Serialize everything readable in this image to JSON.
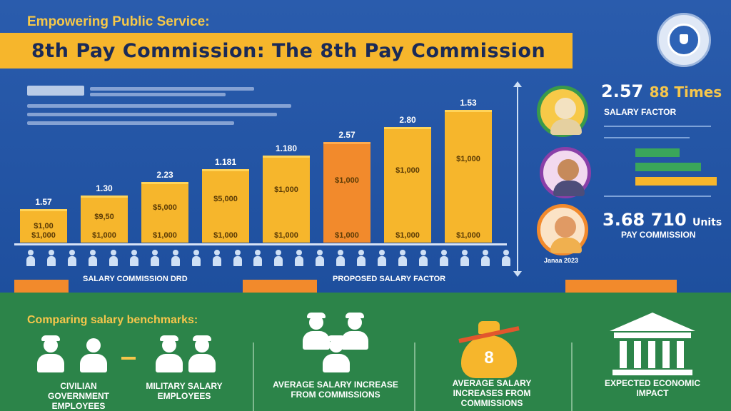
{
  "header": {
    "kicker": "Empowering Public Service:",
    "title": "8th Pay Commission: The 8th Pay Commission"
  },
  "icons": {
    "emblem": "shield-emblem-icon",
    "people": "person-icon",
    "bag": "money-bag-icon",
    "bank": "government-building-icon"
  },
  "colors": {
    "background_blue": "#1f4f9c",
    "bar_yellow": "#f6b62c",
    "bar_orange": "#f28a2c",
    "bottom_green": "#2c8449",
    "accent_text": "#f6c64b"
  },
  "chart_data": {
    "type": "bar",
    "categories": [
      "1",
      "2",
      "3",
      "4",
      "5",
      "6",
      "7",
      "8"
    ],
    "top_labels": [
      "1.57",
      "1.30",
      "2.23",
      "1.181",
      "1.180",
      "2.57",
      "2.80",
      "1.53"
    ],
    "upper_value_labels": [
      "$1,00",
      "$9,50",
      "$5,000",
      "$5,000",
      "$1,000",
      "$1,000",
      "$1,000",
      "$1,000"
    ],
    "lower_value_labels": [
      "$1,000",
      "$1,000",
      "$1,000",
      "$1,000",
      "$1,000",
      "$1,000",
      "$1,000",
      "$1,000"
    ],
    "values": [
      1.0,
      1.4,
      1.8,
      2.2,
      2.6,
      3.0,
      3.45,
      3.95
    ],
    "highlight_index": 5,
    "xlabel_left": "SALARY COMMISSION DRD",
    "xlabel_right": "PROPOSED SALARY FACTOR"
  },
  "stats": {
    "top_value": "2.57",
    "top_accent": "88 Times",
    "top_label": "SALARY FACTOR",
    "bottom_value": "3.68 710",
    "bottom_accent": "Units",
    "bottom_label": "PAY COMMISSION",
    "avatar_caption": "Janaa 2023"
  },
  "comparison": {
    "heading": "Comparing salary benchmarks:",
    "left_caption": "CIVILIAN GOVERNMENT EMPLOYEES",
    "right_caption": "MILITARY SALARY EMPLOYEES",
    "avg_caption": "AVERAGE SALARY INCREASE FROM COMMISSIONS",
    "bag_caption": "AVERAGE SALARY INCREASES FROM COMMISSIONS",
    "bag_mark": "8",
    "bank_caption": "EXPECTED ECONOMIC IMPACT"
  }
}
